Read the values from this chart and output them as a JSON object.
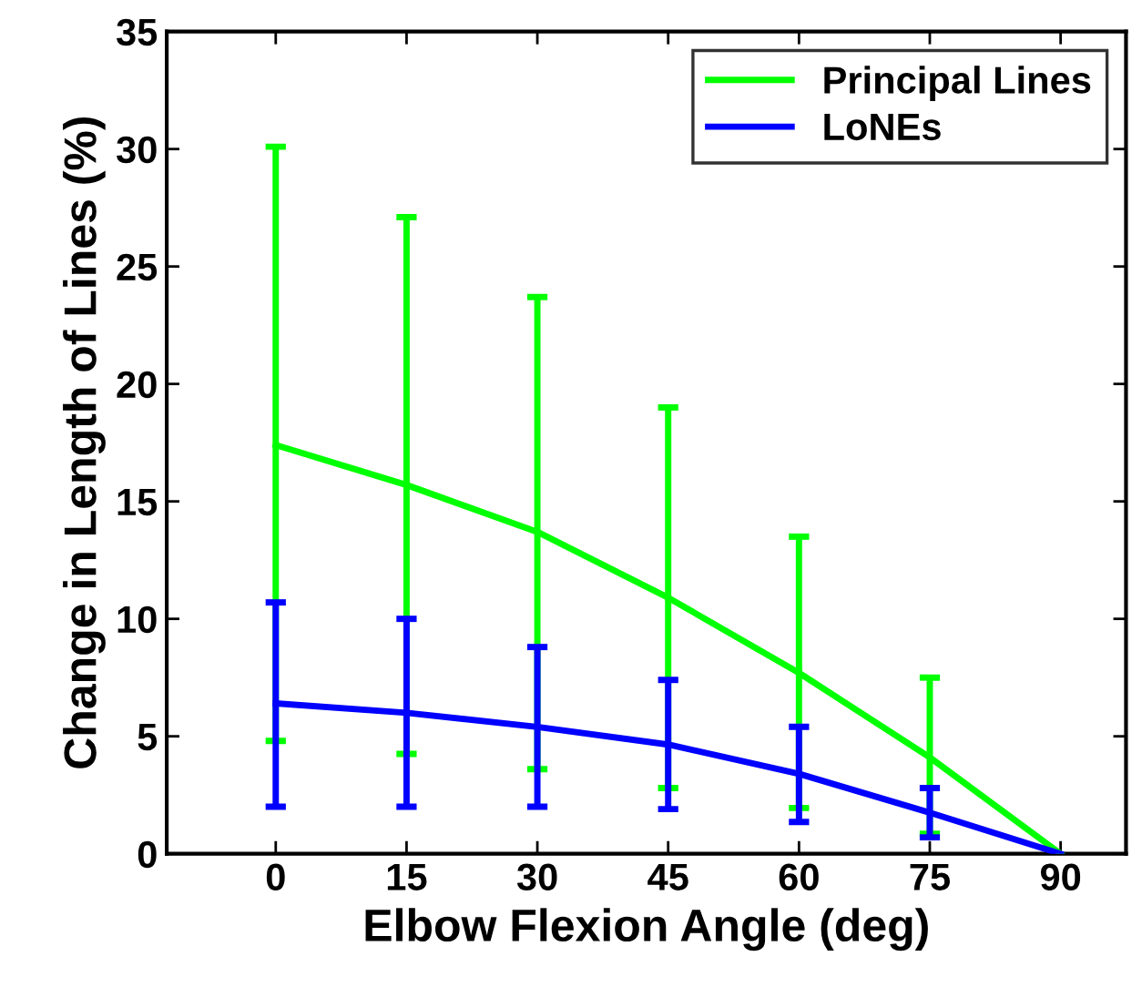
{
  "chart_data": {
    "type": "line",
    "xlabel": "Elbow Flexion Angle (deg)",
    "ylabel": "Change in Length of Lines (%)",
    "x": [
      0,
      15,
      30,
      45,
      60,
      75,
      90
    ],
    "series": [
      {
        "name": "Principal Lines",
        "color": "#00ff00",
        "values": [
          17.4,
          15.7,
          13.7,
          10.9,
          7.7,
          4.1,
          0
        ],
        "errors": [
          [
            4.8,
            30.1
          ],
          [
            4.25,
            27.1
          ],
          [
            3.6,
            23.7
          ],
          [
            2.8,
            19.0
          ],
          [
            1.95,
            13.5
          ],
          [
            0.85,
            7.5
          ],
          null
        ]
      },
      {
        "name": "LoNEs",
        "color": "#0000ff",
        "values": [
          6.4,
          6.0,
          5.4,
          4.65,
          3.4,
          1.75,
          0
        ],
        "errors": [
          [
            2.0,
            10.7
          ],
          [
            2.0,
            10.0
          ],
          [
            2.0,
            8.8
          ],
          [
            1.9,
            7.4
          ],
          [
            1.35,
            5.4
          ],
          [
            0.7,
            2.8
          ],
          null
        ]
      }
    ],
    "xlim": [
      -12.5,
      97.5
    ],
    "xticks": [
      0,
      15,
      30,
      45,
      60,
      75,
      90
    ],
    "ylim": [
      0,
      35
    ],
    "yticks": [
      0,
      5,
      10,
      15,
      20,
      25,
      30,
      35
    ],
    "legend": "top right",
    "grid": false,
    "marker": "none",
    "line_style": "solid"
  }
}
